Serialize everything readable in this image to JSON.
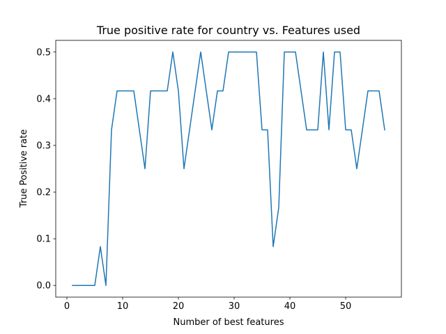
{
  "chart_data": {
    "type": "line",
    "title": "True positive rate for country vs. Features used",
    "xlabel": "Number of best features",
    "ylabel": "True Positive rate",
    "xlim": [
      -2,
      60
    ],
    "ylim": [
      -0.025,
      0.525
    ],
    "x_ticks": [
      0,
      10,
      20,
      30,
      40,
      50
    ],
    "x_tick_labels": [
      "0",
      "10",
      "20",
      "30",
      "40",
      "50"
    ],
    "y_ticks": [
      0.0,
      0.1,
      0.2,
      0.3,
      0.4,
      0.5
    ],
    "y_tick_labels": [
      "0.0",
      "0.1",
      "0.2",
      "0.3",
      "0.4",
      "0.5"
    ],
    "grid": false,
    "series": [
      {
        "color": "#1f77b4",
        "x": [
          1,
          2,
          3,
          4,
          5,
          6,
          7,
          8,
          9,
          10,
          11,
          12,
          13,
          14,
          15,
          16,
          17,
          18,
          19,
          20,
          21,
          22,
          23,
          24,
          25,
          26,
          27,
          28,
          29,
          30,
          31,
          32,
          33,
          34,
          35,
          36,
          37,
          38,
          39,
          40,
          41,
          42,
          43,
          44,
          45,
          46,
          47,
          48,
          49,
          50,
          51,
          52,
          53,
          54,
          55,
          56,
          57
        ],
        "y": [
          0,
          0,
          0,
          0,
          0,
          0.0833,
          0,
          0.3333,
          0.4167,
          0.4167,
          0.4167,
          0.4167,
          0.3333,
          0.25,
          0.4167,
          0.4167,
          0.4167,
          0.4167,
          0.5,
          0.4167,
          0.25,
          0.3333,
          0.4167,
          0.5,
          0.4167,
          0.3333,
          0.4167,
          0.4167,
          0.5,
          0.5,
          0.5,
          0.5,
          0.5,
          0.5,
          0.3333,
          0.3333,
          0.0833,
          0.1667,
          0.5,
          0.5,
          0.5,
          0.4167,
          0.3333,
          0.3333,
          0.3333,
          0.5,
          0.3333,
          0.5,
          0.5,
          0.3333,
          0.3333,
          0.25,
          0.3333,
          0.4167,
          0.4167,
          0.4167,
          0.3333
        ]
      }
    ]
  }
}
